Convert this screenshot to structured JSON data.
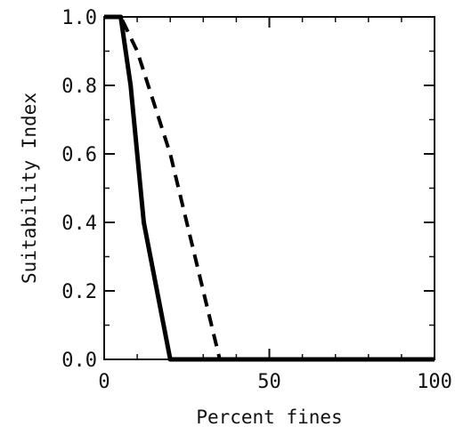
{
  "chart_data": {
    "type": "line",
    "title": "",
    "xlabel": "Percent fines",
    "ylabel": "Suitability Index",
    "xlim": [
      0,
      100
    ],
    "ylim": [
      0,
      1.0
    ],
    "x_tick_labels": [
      "0",
      "50",
      "100"
    ],
    "y_tick_labels": [
      "0.0",
      "0.2",
      "0.4",
      "0.6",
      "0.8",
      "1.0"
    ],
    "grid": false,
    "series": [
      {
        "style": "solid",
        "color": "#000000",
        "x": [
          0,
          5,
          8,
          12,
          20,
          100
        ],
        "y": [
          1.0,
          1.0,
          0.8,
          0.4,
          0.0,
          0.0
        ]
      },
      {
        "style": "dashed",
        "color": "#000000",
        "x": [
          0,
          5,
          10,
          20,
          35,
          100
        ],
        "y": [
          1.0,
          1.0,
          0.9,
          0.6,
          0.0,
          0.0
        ]
      }
    ]
  }
}
